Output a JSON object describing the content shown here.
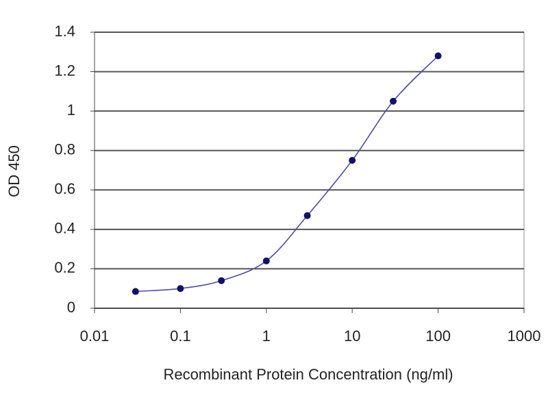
{
  "chart_data": {
    "type": "line",
    "xlabel": "Recombinant Protein Concentration (ng/ml)",
    "ylabel": "OD 450",
    "x": [
      0.03,
      0.1,
      0.3,
      1,
      3,
      10,
      30,
      100
    ],
    "values": [
      0.085,
      0.1,
      0.14,
      0.24,
      0.47,
      0.75,
      1.05,
      1.28
    ],
    "color": "#4a4ab0",
    "marker_color": "#10106e",
    "xscale": "log",
    "xlim": [
      0.01,
      1000
    ],
    "ylim": [
      0,
      1.4
    ],
    "xticks": [
      0.01,
      0.1,
      1,
      10,
      100,
      1000
    ],
    "yticks": [
      0,
      0.2,
      0.4,
      0.6,
      0.8,
      1,
      1.2,
      1.4
    ],
    "grid": true
  }
}
